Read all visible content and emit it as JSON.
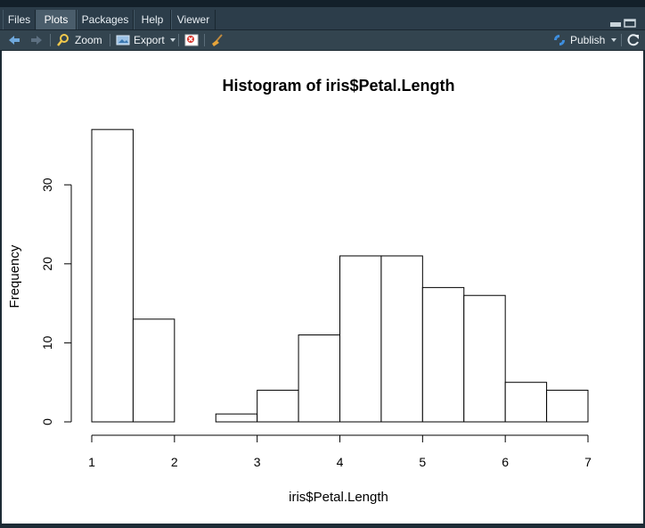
{
  "tabs": [
    {
      "label": "Files",
      "active": false
    },
    {
      "label": "Plots",
      "active": true
    },
    {
      "label": "Packages",
      "active": false
    },
    {
      "label": "Help",
      "active": false
    },
    {
      "label": "Viewer",
      "active": false
    }
  ],
  "toolbar": {
    "zoom_label": "Zoom",
    "export_label": "Export",
    "publish_label": "Publish"
  },
  "colors": {
    "chrome": "#2c3d4a",
    "active_tab": "#4a5d6b",
    "accent": "#3e8ede"
  },
  "chart_data": {
    "type": "bar",
    "title": "Histogram of iris$Petal.Length",
    "xlabel": "iris$Petal.Length",
    "ylabel": "Frequency",
    "bins": [
      {
        "start": 1.0,
        "end": 1.5,
        "count": 37
      },
      {
        "start": 1.5,
        "end": 2.0,
        "count": 13
      },
      {
        "start": 2.0,
        "end": 2.5,
        "count": 0
      },
      {
        "start": 2.5,
        "end": 3.0,
        "count": 1
      },
      {
        "start": 3.0,
        "end": 3.5,
        "count": 4
      },
      {
        "start": 3.5,
        "end": 4.0,
        "count": 11
      },
      {
        "start": 4.0,
        "end": 4.5,
        "count": 21
      },
      {
        "start": 4.5,
        "end": 5.0,
        "count": 21
      },
      {
        "start": 5.0,
        "end": 5.5,
        "count": 17
      },
      {
        "start": 5.5,
        "end": 6.0,
        "count": 16
      },
      {
        "start": 6.0,
        "end": 6.5,
        "count": 5
      },
      {
        "start": 6.5,
        "end": 7.0,
        "count": 4
      }
    ],
    "xlim": [
      1,
      7
    ],
    "xticks": [
      "1",
      "2",
      "3",
      "4",
      "5",
      "6",
      "7"
    ],
    "yticks": [
      "0",
      "10",
      "20",
      "30"
    ],
    "ylim": [
      0,
      37
    ],
    "grid": false,
    "legend": "none"
  }
}
